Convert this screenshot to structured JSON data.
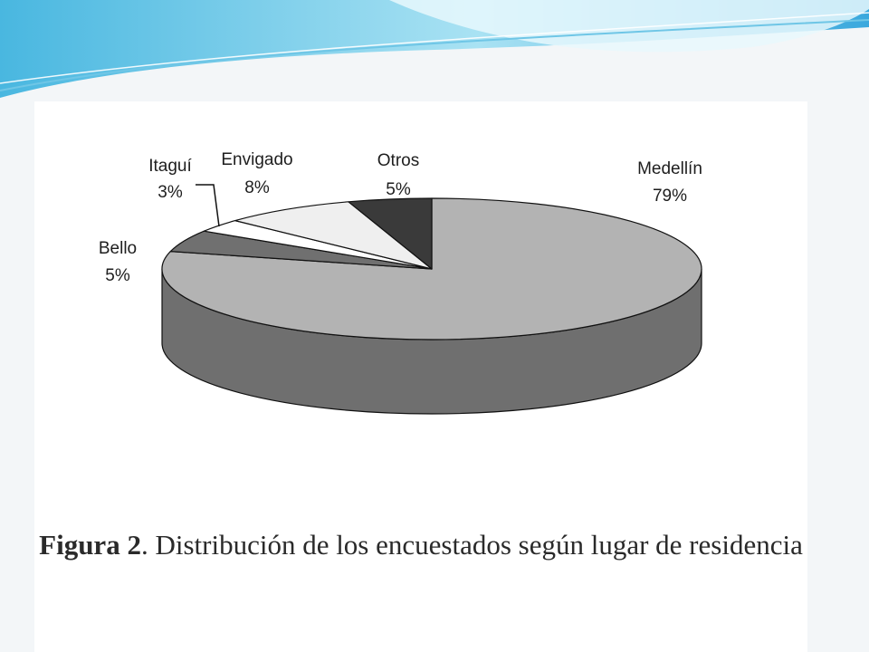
{
  "chart_data": {
    "type": "pie",
    "three_d": true,
    "start_angle_deg": 90,
    "direction": "clockwise",
    "slices": [
      {
        "label": "Medellín",
        "value": 79,
        "value_label": "79%",
        "color": "#b3b3b3",
        "side_color": "#6f6f6f"
      },
      {
        "label": "Bello",
        "value": 5,
        "value_label": "5%",
        "color": "#707070",
        "side_color": "#4a4a4a"
      },
      {
        "label": "Itaguí",
        "value": 3,
        "value_label": "3%",
        "color": "#ffffff",
        "side_color": "#d6d6d6"
      },
      {
        "label": "Envigado",
        "value": 8,
        "value_label": "8%",
        "color": "#efefef",
        "side_color": "#c8c8c8"
      },
      {
        "label": "Otros",
        "value": 5,
        "value_label": "5%",
        "color": "#3a3a3a",
        "side_color": "#222222"
      }
    ],
    "outline_color": "#111111"
  },
  "caption": {
    "figure_number": "Figura 2",
    "text": ". Distribución de los encuestados según lugar de residencia"
  }
}
